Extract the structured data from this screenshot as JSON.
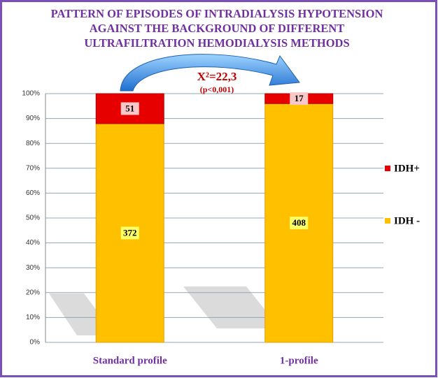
{
  "chart_data": {
    "type": "bar",
    "stacked": "percent",
    "title": [
      "PATTERN OF EPISODES OF INTRADIALYSIS HYPOTENSION",
      "AGAINST THE BACKGROUND OF DIFFERENT",
      "ULTRAFILTRATION HEMODIALYSIS METHODS"
    ],
    "annotations": [
      "X²=22,3",
      "(p<0,001)"
    ],
    "categories": [
      "Standard profile",
      "1-profile"
    ],
    "series": [
      {
        "name": "IDH -",
        "color": "#ffc000",
        "values": [
          372,
          408
        ]
      },
      {
        "name": "IDH+",
        "color": "#e60000",
        "values": [
          51,
          17
        ]
      }
    ],
    "ylim": [
      0,
      100
    ],
    "yticks": [
      {
        "value": 0,
        "label": "0%"
      },
      {
        "value": 10,
        "label": "10%"
      },
      {
        "value": 20,
        "label": "20%"
      },
      {
        "value": 30,
        "label": "30%"
      },
      {
        "value": 40,
        "label": "40%"
      },
      {
        "value": 50,
        "label": "50%"
      },
      {
        "value": 60,
        "label": "60%"
      },
      {
        "value": 70,
        "label": "70%"
      },
      {
        "value": 80,
        "label": "80%"
      },
      {
        "value": 90,
        "label": "90%"
      },
      {
        "value": 100,
        "label": "100%"
      }
    ],
    "grid": true,
    "legend": "right"
  }
}
